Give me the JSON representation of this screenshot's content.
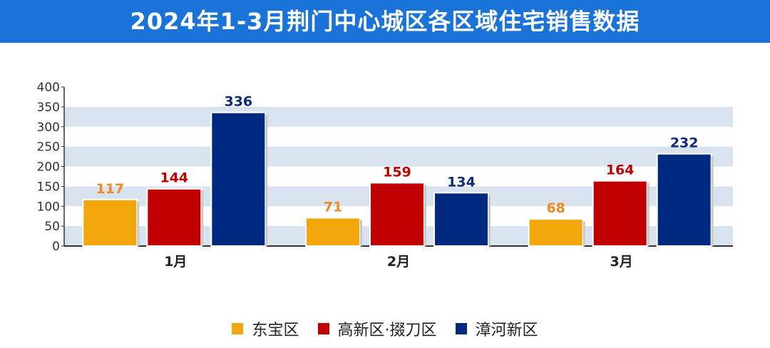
{
  "title": "2024年1-3月荆门中心城区各区域住宅销售数据",
  "colors": {
    "title_bg": "#1a73d9",
    "stripe": "#d9e3ef",
    "axis": "#333333",
    "series": [
      "#f2a60c",
      "#c00000",
      "#002a80"
    ],
    "label": [
      "#f0891f",
      "#c00000",
      "#0b2a7a"
    ]
  },
  "chart_data": {
    "type": "bar",
    "categories": [
      "1月",
      "2月",
      "3月"
    ],
    "series": [
      {
        "name": "东宝区",
        "values": [
          117,
          71,
          68
        ]
      },
      {
        "name": "高新区·掇刀区",
        "values": [
          144,
          159,
          164
        ]
      },
      {
        "name": "漳河新区",
        "values": [
          336,
          134,
          232
        ]
      }
    ],
    "ylim": [
      0,
      400
    ],
    "yticks": [
      0,
      50,
      100,
      150,
      200,
      250,
      300,
      350,
      400
    ],
    "grid": "horizontal bands",
    "legend_position": "bottom"
  }
}
